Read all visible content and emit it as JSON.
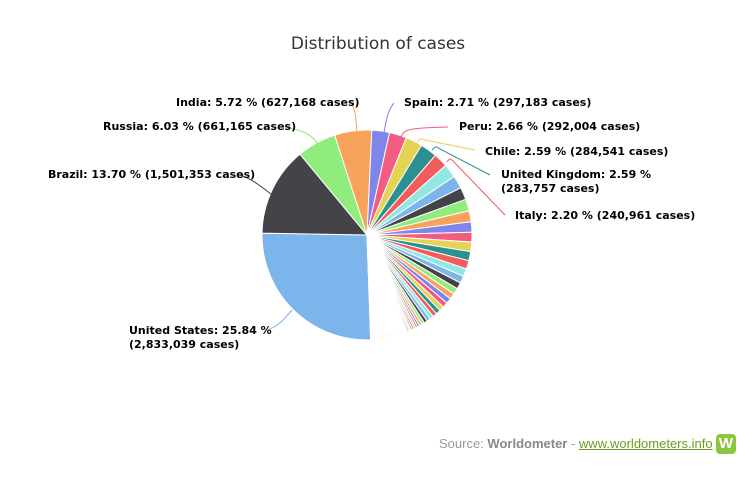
{
  "chart_data": {
    "type": "pie",
    "title": "Distribution of cases",
    "series": [
      {
        "name": "United States",
        "label": "United States: 25.84 % (2,833,039 cases)",
        "value": 25.84,
        "color": "#7cb5ec"
      },
      {
        "name": "Brazil",
        "label": "Brazil: 13.70 % (1,501,353 cases)",
        "value": 13.7,
        "color": "#434348"
      },
      {
        "name": "Russia",
        "label": "Russia: 6.03 % (661,165 cases)",
        "value": 6.03,
        "color": "#90ed7d"
      },
      {
        "name": "India",
        "label": "India: 5.72 % (627,168 cases)",
        "value": 5.72,
        "color": "#f7a35c"
      },
      {
        "name": "Spain",
        "label": "Spain: 2.71 % (297,183 cases)",
        "value": 2.71,
        "color": "#8085e9"
      },
      {
        "name": "Peru",
        "label": "Peru: 2.66 % (292,004 cases)",
        "value": 2.66,
        "color": "#f15c80"
      },
      {
        "name": "Chile",
        "label": "Chile: 2.59 % (284,541 cases)",
        "value": 2.59,
        "color": "#e4d354"
      },
      {
        "name": "United Kingdom",
        "label1": "United Kingdom: 2.59 %",
        "label2": "(283,757 cases)",
        "value": 2.59,
        "color": "#2b908f"
      },
      {
        "name": "Italy",
        "label": "Italy: 2.20 % (240,961 cases)",
        "value": 2.2,
        "color": "#f45b5b"
      }
    ],
    "us_label1": "United States: 25.84 %",
    "us_label2": "(2,833,039 cases)",
    "unlabeled_values": [
      2.1,
      2.0,
      1.9,
      1.8,
      1.7,
      1.6,
      1.5,
      1.45,
      1.4,
      1.3,
      1.2,
      1.1,
      1.0,
      0.95,
      0.9,
      0.85,
      0.8,
      0.75,
      0.7,
      0.65,
      0.6,
      0.55,
      0.5,
      0.45,
      0.4,
      0.35,
      0.3,
      0.3,
      0.25,
      0.25,
      0.2,
      0.2,
      0.2,
      0.15,
      0.15,
      0.15,
      0.1,
      0.1,
      0.1,
      0.1
    ],
    "tiny_remainder": 4.91,
    "palette": [
      "#7cb5ec",
      "#434348",
      "#90ed7d",
      "#f7a35c",
      "#8085e9",
      "#f15c80",
      "#e4d354",
      "#2b908f",
      "#f45b5b",
      "#91e8e1"
    ],
    "legend": "none"
  },
  "source": {
    "prefix": "Source: ",
    "name": "Worldometer",
    "sep": " - ",
    "link": "www.worldometers.info",
    "logo": "W"
  }
}
